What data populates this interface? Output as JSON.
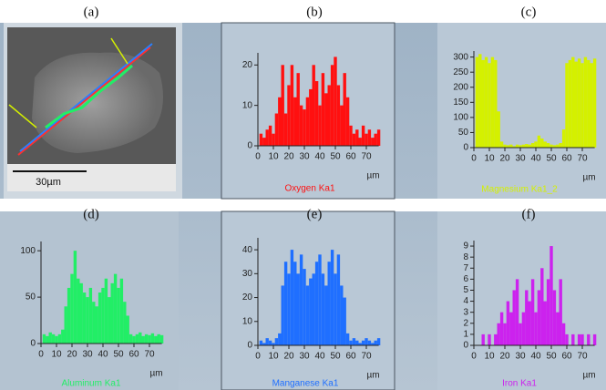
{
  "image": {
    "label": "(a)",
    "scale_bar": "30µm"
  },
  "chart_data": [
    {
      "type": "bar",
      "label": "(b)",
      "x_label": "µm",
      "x": [
        2,
        4,
        6,
        8,
        10,
        12,
        14,
        16,
        18,
        20,
        22,
        24,
        26,
        28,
        30,
        32,
        34,
        36,
        38,
        40,
        42,
        44,
        46,
        48,
        50,
        52,
        54,
        56,
        58,
        60,
        62,
        64,
        66,
        68,
        70,
        72,
        74,
        76,
        78
      ],
      "series": [
        {
          "name": "Oxygen Ka1",
          "color": "#ff1010",
          "values": [
            3,
            2,
            4,
            5,
            3,
            8,
            12,
            20,
            8,
            15,
            20,
            12,
            18,
            10,
            9,
            12,
            14,
            20,
            16,
            10,
            18,
            13,
            15,
            20,
            22,
            15,
            10,
            18,
            12,
            5,
            3,
            4,
            2,
            5,
            3,
            4,
            2,
            3,
            4
          ]
        }
      ],
      "xlim": [
        0,
        78
      ],
      "xticks": [
        0,
        10,
        20,
        30,
        40,
        50,
        60,
        70
      ],
      "ylim": [
        0,
        23
      ],
      "yticks": [
        0,
        10,
        20
      ]
    },
    {
      "type": "bar",
      "label": "(c)",
      "x_label": "µm",
      "x": [
        2,
        4,
        6,
        8,
        10,
        12,
        14,
        16,
        18,
        20,
        22,
        24,
        26,
        28,
        30,
        32,
        34,
        36,
        38,
        40,
        42,
        44,
        46,
        48,
        50,
        52,
        54,
        56,
        58,
        60,
        62,
        64,
        66,
        68,
        70,
        72,
        74,
        76,
        78
      ],
      "series": [
        {
          "name": "Magnesium Ka1_2",
          "color": "#d4f000",
          "values": [
            300,
            310,
            290,
            300,
            280,
            300,
            290,
            120,
            20,
            10,
            8,
            10,
            5,
            10,
            8,
            10,
            12,
            10,
            15,
            20,
            40,
            30,
            20,
            15,
            10,
            8,
            10,
            15,
            60,
            280,
            290,
            300,
            285,
            295,
            280,
            300,
            290,
            280,
            295
          ]
        }
      ],
      "xlim": [
        0,
        78
      ],
      "xticks": [
        0,
        10,
        20,
        30,
        40,
        50,
        60,
        70
      ],
      "ylim": [
        0,
        320
      ],
      "yticks": [
        0,
        50,
        100,
        150,
        200,
        250,
        300
      ]
    },
    {
      "type": "bar",
      "label": "(d)",
      "x_label": "µm",
      "x": [
        2,
        4,
        6,
        8,
        10,
        12,
        14,
        16,
        18,
        20,
        22,
        24,
        26,
        28,
        30,
        32,
        34,
        36,
        38,
        40,
        42,
        44,
        46,
        48,
        50,
        52,
        54,
        56,
        58,
        60,
        62,
        64,
        66,
        68,
        70,
        72,
        74,
        76,
        78
      ],
      "series": [
        {
          "name": "Aluminum Ka1",
          "color": "#22ee66",
          "values": [
            10,
            8,
            12,
            10,
            8,
            10,
            15,
            40,
            60,
            75,
            100,
            70,
            65,
            55,
            50,
            60,
            45,
            40,
            55,
            60,
            70,
            50,
            65,
            75,
            60,
            70,
            45,
            30,
            10,
            8,
            10,
            12,
            8,
            10,
            9,
            11,
            8,
            10,
            9
          ]
        }
      ],
      "xlim": [
        0,
        78
      ],
      "xticks": [
        0,
        10,
        20,
        30,
        40,
        50,
        60,
        70
      ],
      "ylim": [
        0,
        110
      ],
      "yticks": [
        0,
        50,
        100
      ]
    },
    {
      "type": "bar",
      "label": "(e)",
      "x_label": "µm",
      "x": [
        2,
        4,
        6,
        8,
        10,
        12,
        14,
        16,
        18,
        20,
        22,
        24,
        26,
        28,
        30,
        32,
        34,
        36,
        38,
        40,
        42,
        44,
        46,
        48,
        50,
        52,
        54,
        56,
        58,
        60,
        62,
        64,
        66,
        68,
        70,
        72,
        74,
        76,
        78
      ],
      "series": [
        {
          "name": "Manganese Ka1",
          "color": "#1f6fff",
          "values": [
            2,
            1,
            3,
            2,
            1,
            3,
            5,
            25,
            35,
            30,
            40,
            35,
            30,
            38,
            32,
            25,
            28,
            30,
            35,
            38,
            30,
            25,
            35,
            40,
            30,
            38,
            25,
            20,
            5,
            2,
            3,
            2,
            1,
            2,
            3,
            2,
            1,
            2,
            3
          ]
        }
      ],
      "xlim": [
        0,
        78
      ],
      "xticks": [
        0,
        10,
        20,
        30,
        40,
        50,
        60,
        70
      ],
      "ylim": [
        0,
        45
      ],
      "yticks": [
        0,
        10,
        20,
        30,
        40
      ]
    },
    {
      "type": "bar",
      "label": "(f)",
      "x_label": "µm",
      "x": [
        2,
        4,
        6,
        8,
        10,
        12,
        14,
        16,
        18,
        20,
        22,
        24,
        26,
        28,
        30,
        32,
        34,
        36,
        38,
        40,
        42,
        44,
        46,
        48,
        50,
        52,
        54,
        56,
        58,
        60,
        62,
        64,
        66,
        68,
        70,
        72,
        74,
        76,
        78
      ],
      "series": [
        {
          "name": "Iron Ka1",
          "color": "#cc22ee",
          "values": [
            0,
            0,
            1,
            0,
            1,
            0,
            1,
            2,
            3,
            2,
            4,
            3,
            5,
            6,
            2,
            3,
            5,
            4,
            6,
            3,
            5,
            7,
            4,
            6,
            9,
            5,
            3,
            6,
            2,
            1,
            0,
            1,
            0,
            1,
            1,
            0,
            1,
            0,
            1
          ]
        }
      ],
      "xlim": [
        0,
        78
      ],
      "xticks": [
        0,
        10,
        20,
        30,
        40,
        50,
        60,
        70
      ],
      "ylim": [
        0,
        9.5
      ],
      "yticks": [
        0,
        1,
        2,
        3,
        4,
        5,
        6,
        7,
        8,
        9
      ]
    }
  ]
}
